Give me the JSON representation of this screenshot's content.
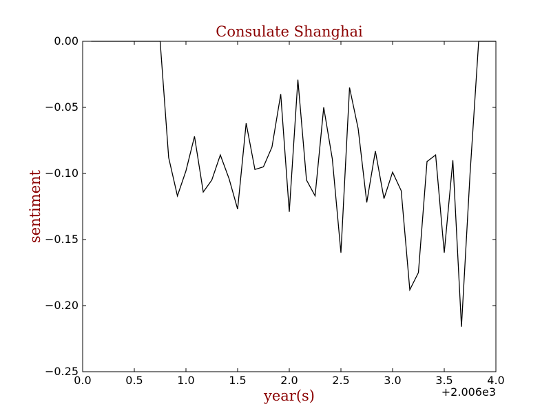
{
  "chart_data": {
    "type": "line",
    "title": "Consulate Shanghai",
    "xlabel": "year(s)",
    "ylabel": "sentiment",
    "x_offset_label": "+2.006e3",
    "xlim": [
      0.0,
      4.0
    ],
    "ylim": [
      -0.25,
      0.0
    ],
    "x_ticks": [
      0.0,
      0.5,
      1.0,
      1.5,
      2.0,
      2.5,
      3.0,
      3.5,
      4.0
    ],
    "x_tick_labels": [
      "0.0",
      "0.5",
      "1.0",
      "1.5",
      "2.0",
      "2.5",
      "3.0",
      "3.5",
      "4.0"
    ],
    "y_ticks": [
      0.0,
      -0.05,
      -0.1,
      -0.15,
      -0.2,
      -0.25
    ],
    "y_tick_labels": [
      "0.00",
      "−0.05",
      "−0.10",
      "−0.15",
      "−0.20",
      "−0.25"
    ],
    "grid": false,
    "line_color": "#000000",
    "series": [
      {
        "x": [
          0.083,
          0.167,
          0.25,
          0.333,
          0.417,
          0.5,
          0.583,
          0.667,
          0.75,
          0.833,
          0.917,
          1.0,
          1.083,
          1.167,
          1.25,
          1.333,
          1.417,
          1.5,
          1.583,
          1.667,
          1.75,
          1.833,
          1.917,
          2.0,
          2.083,
          2.167,
          2.25,
          2.333,
          2.417,
          2.5,
          2.583,
          2.667,
          2.75,
          2.833,
          2.917,
          3.0,
          3.083,
          3.167,
          3.25,
          3.333,
          3.417,
          3.5,
          3.583,
          3.667,
          3.75,
          3.833,
          3.917,
          4.0
        ],
        "y": [
          0.0,
          0.0,
          0.0,
          0.0,
          0.0,
          0.0,
          0.0,
          0.0,
          0.0,
          -0.088,
          -0.117,
          -0.098,
          -0.072,
          -0.114,
          -0.105,
          -0.086,
          -0.104,
          -0.127,
          -0.062,
          -0.097,
          -0.095,
          -0.08,
          -0.04,
          -0.129,
          -0.029,
          -0.105,
          -0.117,
          -0.05,
          -0.089,
          -0.16,
          -0.035,
          -0.066,
          -0.122,
          -0.083,
          -0.119,
          -0.099,
          -0.113,
          -0.188,
          -0.175,
          -0.091,
          -0.086,
          -0.16,
          -0.09,
          -0.216,
          -0.1,
          0.0,
          0.0,
          0.0
        ]
      }
    ]
  }
}
